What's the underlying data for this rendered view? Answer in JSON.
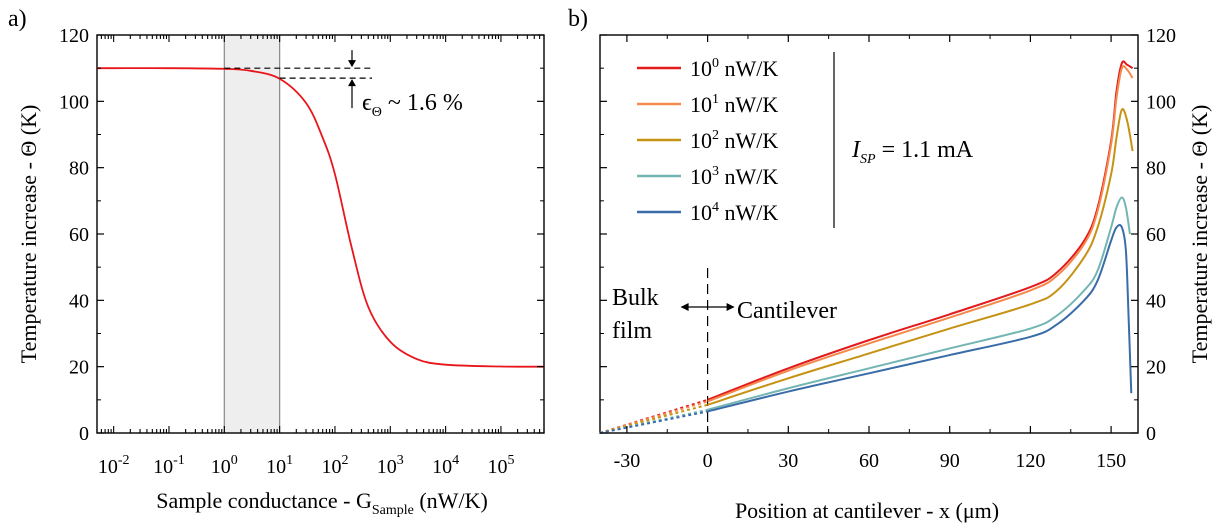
{
  "chart_data": [
    {
      "panel_label": "a)",
      "type": "line",
      "xlabel": "Sample conductance - G",
      "xlabel_sub": "Sample",
      "xlabel_units": " (nW/K)",
      "ylabel": "Temperature increase - Θ (K)",
      "xscale": "log",
      "xlim": [
        0.005,
        600000
      ],
      "ylim": [
        0,
        120
      ],
      "x_tick_exponents": [
        "-2",
        "-1",
        "0",
        "1",
        "2",
        "3",
        "4",
        "5"
      ],
      "x_tick_base": "10",
      "y_ticks": [
        "0",
        "20",
        "40",
        "60",
        "80",
        "100",
        "120"
      ],
      "shaded_region": [
        1,
        10
      ],
      "series": [
        {
          "color": "#e8161b",
          "x": [
            0.005,
            0.01,
            0.1,
            1,
            3,
            10,
            30,
            60,
            100,
            200,
            400,
            1000,
            3000,
            10000,
            100000,
            600000
          ],
          "y": [
            110,
            110,
            110,
            109.8,
            109.2,
            106.8,
            99.5,
            89,
            78,
            56,
            38,
            27.5,
            22.3,
            20.6,
            20.05,
            20
          ]
        }
      ],
      "annotation": {
        "text": "ϵ",
        "sub": "Θ",
        "rest": " ~ 1.6 %",
        "y_upper": 110,
        "y_lower": 107
      }
    },
    {
      "panel_label": "b)",
      "type": "line",
      "xlabel": "Position at cantilever - x (μm)",
      "ylabel": "Temperature increase - Θ (K)",
      "xlim": [
        -40,
        160
      ],
      "ylim": [
        0,
        120
      ],
      "x_ticks": [
        "-30",
        "0",
        "30",
        "60",
        "90",
        "120",
        "150"
      ],
      "y_ticks": [
        "0",
        "20",
        "40",
        "60",
        "80",
        "100",
        "120"
      ],
      "boundary_x": 0,
      "region_left": [
        "Bulk",
        "film"
      ],
      "region_right": "Cantilever",
      "current_label": "I",
      "current_sub": "SP",
      "current_value": " = 1.1 mA",
      "series": [
        {
          "name": "10",
          "exp": "0",
          "unit": " nW/K",
          "color": "#e31a1c",
          "x": [
            -40,
            0,
            30,
            60,
            90,
            120,
            130,
            140,
            145,
            150,
            152,
            154,
            156,
            158
          ],
          "y": [
            0,
            10,
            19.5,
            28,
            35.8,
            44,
            48.5,
            58,
            68,
            88,
            103,
            111.5,
            111,
            110
          ]
        },
        {
          "name": "10",
          "exp": "1",
          "unit": " nW/K",
          "color": "#f4894b",
          "x": [
            -40,
            0,
            30,
            60,
            90,
            120,
            130,
            140,
            145,
            150,
            152,
            154,
            156,
            158
          ],
          "y": [
            0,
            9.5,
            18.8,
            27,
            34.8,
            43,
            47.5,
            57,
            67,
            87,
            101,
            110,
            109.5,
            107
          ]
        },
        {
          "name": "10",
          "exp": "2",
          "unit": " nW/K",
          "color": "#c69214",
          "x": [
            -40,
            0,
            30,
            60,
            90,
            120,
            130,
            140,
            145,
            150,
            152,
            154,
            156,
            158
          ],
          "y": [
            0,
            8.5,
            16.5,
            24,
            31.5,
            38.8,
            43,
            53,
            62,
            78,
            89,
            97.5,
            94,
            85
          ]
        },
        {
          "name": "10",
          "exp": "3",
          "unit": " nW/K",
          "color": "#73b5b3",
          "x": [
            -40,
            0,
            30,
            60,
            90,
            120,
            130,
            140,
            145,
            150,
            152,
            154,
            155.5,
            157
          ],
          "y": [
            0,
            7,
            13.5,
            19.5,
            25.5,
            31.5,
            35.5,
            43,
            49,
            62,
            68,
            71,
            68,
            60
          ]
        },
        {
          "name": "10",
          "exp": "4",
          "unit": " nW/K",
          "color": "#3a6ca8",
          "x": [
            -40,
            0,
            30,
            60,
            90,
            120,
            130,
            140,
            145,
            150,
            152,
            154,
            155.5,
            156.5,
            157.5
          ],
          "y": [
            0,
            6.5,
            12.5,
            18,
            23.5,
            29,
            32.8,
            40,
            46,
            58,
            62,
            62,
            55,
            35,
            12
          ]
        }
      ]
    }
  ]
}
